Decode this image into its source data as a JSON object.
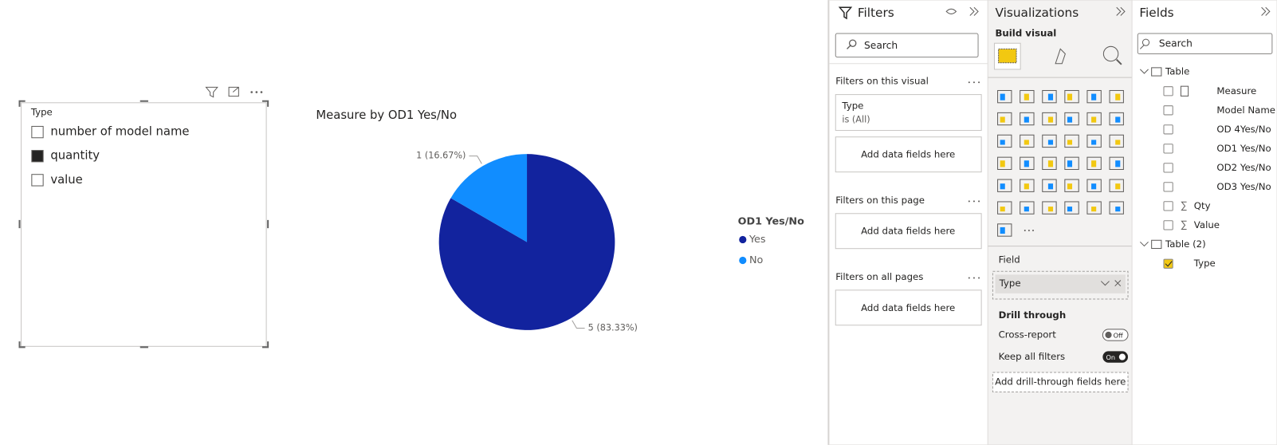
{
  "slicer": {
    "title": "Type",
    "items": [
      {
        "label": "number of model name",
        "checked": false
      },
      {
        "label": "quantity",
        "checked": true
      },
      {
        "label": "value",
        "checked": false
      }
    ]
  },
  "chart_data": {
    "type": "pie",
    "title": "Measure by OD1 Yes/No",
    "legend_title": "OD1 Yes/No",
    "categories": [
      "Yes",
      "No"
    ],
    "values": [
      5,
      1
    ],
    "value_labels": [
      "5 (83.33%)",
      "1 (16.67%)"
    ],
    "colors": [
      "#12239E",
      "#118DFF"
    ]
  },
  "filters": {
    "title": "Filters",
    "search": "Search",
    "sections": [
      {
        "title": "Filters on this visual",
        "card": {
          "field": "Type",
          "state": "is (All)"
        },
        "add": "Add data fields here"
      },
      {
        "title": "Filters on this page",
        "add": "Add data fields here"
      },
      {
        "title": "Filters on all pages",
        "add": "Add data fields here"
      }
    ]
  },
  "visualizations": {
    "title": "Visualizations",
    "build_visual": "Build visual",
    "field_label": "Field",
    "field_value": "Type",
    "drill_title": "Drill through",
    "cross_report": "Cross-report",
    "cross_state": "Off",
    "keep_filters": "Keep all filters",
    "keep_state": "On",
    "add_drill": "Add drill-through fields here"
  },
  "fields": {
    "title": "Fields",
    "search": "Search",
    "tables": [
      {
        "name": "Table",
        "fields": [
          {
            "name": "Measure",
            "icon": "calculator",
            "checked": false
          },
          {
            "name": "Model Name",
            "checked": false
          },
          {
            "name": "OD 4Yes/No",
            "checked": false
          },
          {
            "name": "OD1 Yes/No",
            "checked": false
          },
          {
            "name": "OD2 Yes/No",
            "checked": false
          },
          {
            "name": "OD3 Yes/No",
            "checked": false
          },
          {
            "name": "Qty",
            "icon": "sigma",
            "checked": false
          },
          {
            "name": "Value",
            "icon": "sigma",
            "checked": false
          }
        ]
      },
      {
        "name": "Table (2)",
        "fields": [
          {
            "name": "Type",
            "checked": true
          }
        ]
      }
    ]
  }
}
